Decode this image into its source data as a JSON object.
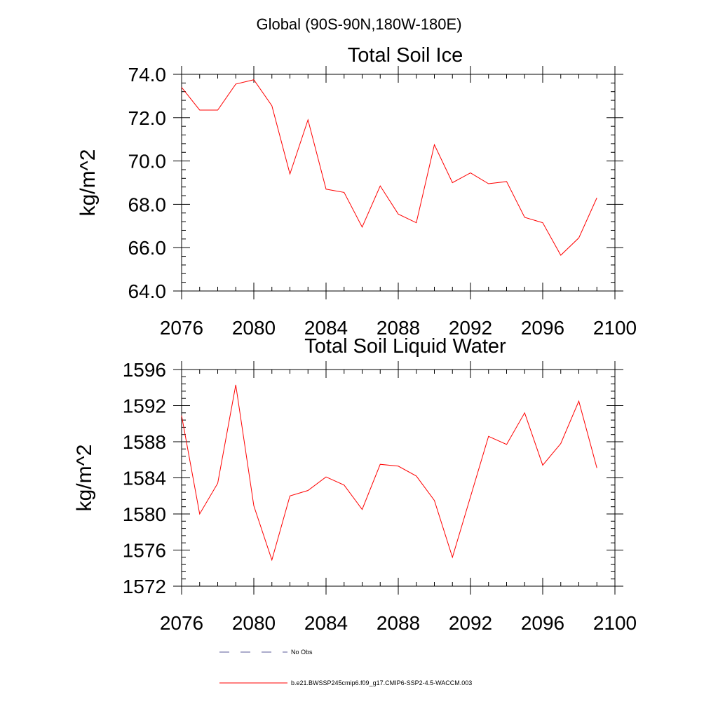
{
  "figure_title": "Global (90S-90N,180W-180E)",
  "chart_data": [
    {
      "type": "line",
      "title": "Total Soil Ice",
      "xlabel": "",
      "ylabel": "kg/m^2",
      "xlim": [
        2076,
        2100
      ],
      "ylim": [
        64,
        74
      ],
      "xticks": [
        2076,
        2080,
        2084,
        2088,
        2092,
        2096,
        2100
      ],
      "yticks": [
        64,
        66,
        68,
        70,
        72,
        74
      ],
      "ytick_labels": [
        "64.0",
        "66.0",
        "68.0",
        "70.0",
        "72.0",
        "74.0"
      ],
      "grid": false,
      "series": [
        {
          "color": "#ff0000",
          "x": [
            2076,
            2077,
            2078,
            2079,
            2080,
            2081,
            2082,
            2083,
            2084,
            2085,
            2086,
            2087,
            2088,
            2089,
            2090,
            2091,
            2092,
            2093,
            2094,
            2095,
            2096,
            2097,
            2098,
            2099
          ],
          "y": [
            73.4,
            72.35,
            72.35,
            73.55,
            73.75,
            72.55,
            69.4,
            71.9,
            68.7,
            68.55,
            66.95,
            68.85,
            67.55,
            67.15,
            70.75,
            69.0,
            69.45,
            68.95,
            69.05,
            67.4,
            67.15,
            65.65,
            66.45,
            68.3
          ]
        }
      ]
    },
    {
      "type": "line",
      "title": "Total Soil Liquid Water",
      "xlabel": "",
      "ylabel": "kg/m^2",
      "xlim": [
        2076,
        2100
      ],
      "ylim": [
        1572,
        1596
      ],
      "xticks": [
        2076,
        2080,
        2084,
        2088,
        2092,
        2096,
        2100
      ],
      "yticks": [
        1572,
        1576,
        1580,
        1584,
        1588,
        1592,
        1596
      ],
      "ytick_labels": [
        "1572",
        "1576",
        "1580",
        "1584",
        "1588",
        "1592",
        "1596"
      ],
      "grid": false,
      "series": [
        {
          "color": "#ff0000",
          "x": [
            2076,
            2077,
            2078,
            2079,
            2080,
            2081,
            2082,
            2083,
            2084,
            2085,
            2086,
            2087,
            2088,
            2089,
            2090,
            2091,
            2092,
            2093,
            2094,
            2095,
            2096,
            2097,
            2098,
            2099
          ],
          "y": [
            1590.9,
            1580.0,
            1583.4,
            1594.3,
            1580.9,
            1574.9,
            1582.0,
            1582.6,
            1584.1,
            1583.2,
            1580.5,
            1585.5,
            1585.3,
            1584.2,
            1581.5,
            1575.2,
            1581.9,
            1588.6,
            1587.7,
            1591.2,
            1585.4,
            1587.8,
            1592.5,
            1585.1
          ]
        }
      ]
    }
  ],
  "legend": {
    "items": [
      {
        "label": "No Obs",
        "color": "#5a5a9a",
        "style": "dashed"
      },
      {
        "label": "b.e21.BWSSP245cmip6.f09_g17.CMIP6-SSP2-4.5-WACCM.003",
        "color": "#ff0000",
        "style": "solid"
      }
    ]
  }
}
